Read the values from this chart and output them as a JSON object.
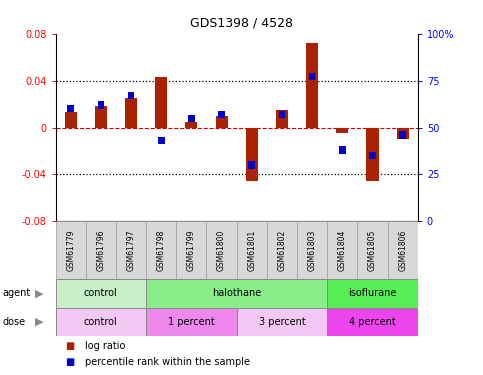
{
  "title": "GDS1398 / 4528",
  "samples": [
    "GSM61779",
    "GSM61796",
    "GSM61797",
    "GSM61798",
    "GSM61799",
    "GSM61800",
    "GSM61801",
    "GSM61802",
    "GSM61803",
    "GSM61804",
    "GSM61805",
    "GSM61806"
  ],
  "log_ratio": [
    0.013,
    0.018,
    0.025,
    0.043,
    0.005,
    0.01,
    -0.046,
    0.015,
    0.072,
    -0.005,
    -0.046,
    -0.01
  ],
  "pct_rank": [
    0.6,
    0.62,
    0.67,
    0.43,
    0.55,
    0.57,
    0.3,
    0.57,
    0.77,
    0.38,
    0.35,
    0.46
  ],
  "ylim": [
    -0.08,
    0.08
  ],
  "yticks_left": [
    -0.08,
    -0.04,
    0.0,
    0.04,
    0.08
  ],
  "yticks_left_labels": [
    "-0.08",
    "-0.04",
    "0",
    "0.04",
    "0.08"
  ],
  "yticks_right_labels": [
    "0",
    "25",
    "50",
    "75",
    "100%"
  ],
  "agent_groups": [
    {
      "label": "control",
      "start": 0,
      "end": 3,
      "color": "#c8f0c8"
    },
    {
      "label": "halothane",
      "start": 3,
      "end": 9,
      "color": "#88ee88"
    },
    {
      "label": "isoflurane",
      "start": 9,
      "end": 12,
      "color": "#44dd44"
    }
  ],
  "dose_groups": [
    {
      "label": "control",
      "start": 0,
      "end": 3,
      "color": "#f0b8f0"
    },
    {
      "label": "1 percent",
      "start": 3,
      "end": 6,
      "color": "#ee88ee"
    },
    {
      "label": "3 percent",
      "start": 6,
      "end": 9,
      "color": "#f0b8f0"
    },
    {
      "label": "4 percent",
      "start": 9,
      "end": 12,
      "color": "#ee44ee"
    }
  ],
  "bar_color_red": "#aa2200",
  "bar_color_blue": "#0000cc",
  "zero_line_color": "#cc0000",
  "dotted_line_color": "#000000",
  "bar_width": 0.4,
  "blue_square_size": 0.22
}
